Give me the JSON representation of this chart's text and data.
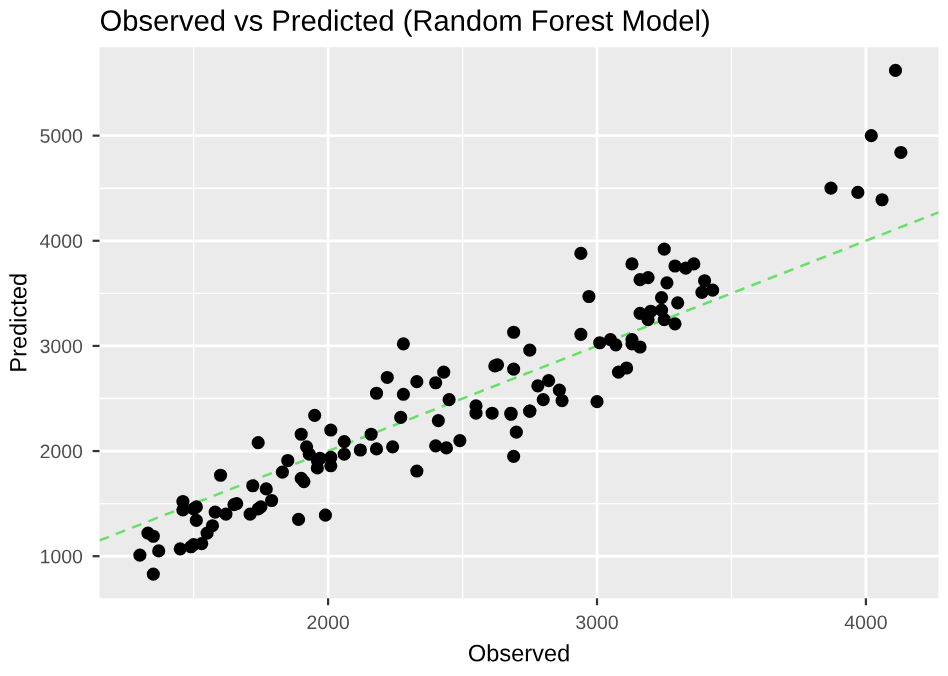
{
  "chart_data": {
    "type": "scatter",
    "title": "Observed vs Predicted (Random Forest Model)",
    "xlabel": "Observed",
    "ylabel": "Predicted",
    "xlim": [
      1150,
      4270
    ],
    "ylim": [
      600,
      5840
    ],
    "xticks": [
      2000,
      3000,
      4000
    ],
    "yticks": [
      1000,
      2000,
      3000,
      4000,
      5000
    ],
    "grid": true,
    "legend": false,
    "series": [
      {
        "color": "#000000",
        "marker": "circle",
        "x": [
          4110,
          4020,
          4130,
          3870,
          3970,
          4060,
          2940,
          3250,
          3130,
          3290,
          3330,
          3360,
          3160,
          3190,
          3260,
          3400,
          3390,
          3430,
          2970,
          3240,
          3300,
          3160,
          3200,
          3240,
          3190,
          3250,
          3290,
          2690,
          2940,
          3010,
          3050,
          3070,
          3130,
          3130,
          3160,
          2750,
          3080,
          3110,
          2780,
          2820,
          2860,
          2800,
          2870,
          3000,
          2750,
          2680,
          2700,
          2690,
          2280,
          2220,
          2180,
          2280,
          2330,
          2400,
          2430,
          2450,
          2550,
          2550,
          2610,
          2620,
          2630,
          2690,
          2680,
          2750,
          2270,
          2410,
          2400,
          2440,
          2490,
          2330,
          2160,
          2180,
          2240,
          2120,
          2060,
          2060,
          2010,
          2010,
          2010,
          1950,
          1900,
          1920,
          1930,
          1960,
          1960,
          1970,
          1850,
          1830,
          1900,
          1910,
          1990,
          1890,
          1740,
          1720,
          1770,
          1790,
          1750,
          1740,
          1710,
          1660,
          1650,
          1600,
          1620,
          1580,
          1570,
          1550,
          1530,
          1500,
          1490,
          1450,
          1460,
          1460,
          1500,
          1510,
          1510,
          1350,
          1330,
          1370,
          1300,
          1350
        ],
        "values": [
          5620,
          5000,
          4840,
          4500,
          4460,
          4390,
          3880,
          3920,
          3780,
          3760,
          3740,
          3780,
          3630,
          3650,
          3600,
          3620,
          3510,
          3530,
          3470,
          3460,
          3410,
          3310,
          3330,
          3340,
          3250,
          3250,
          3210,
          3130,
          3110,
          3030,
          3060,
          3010,
          3060,
          3020,
          2990,
          2960,
          2750,
          2790,
          2620,
          2670,
          2580,
          2490,
          2480,
          2470,
          2380,
          2350,
          2180,
          1950,
          3020,
          2700,
          2550,
          2540,
          2660,
          2650,
          2750,
          2490,
          2430,
          2360,
          2360,
          2810,
          2820,
          2780,
          2360,
          2380,
          2320,
          2290,
          2050,
          2030,
          2100,
          1810,
          2160,
          2020,
          2040,
          2010,
          2090,
          1970,
          2200,
          1940,
          1860,
          2340,
          2160,
          2040,
          1970,
          1910,
          1840,
          1930,
          1910,
          1800,
          1740,
          1710,
          1390,
          1350,
          2080,
          1670,
          1640,
          1530,
          1470,
          1450,
          1400,
          1500,
          1490,
          1770,
          1400,
          1420,
          1290,
          1220,
          1120,
          1110,
          1090,
          1070,
          1520,
          1440,
          1450,
          1340,
          1470,
          1190,
          1220,
          1050,
          1010,
          830
        ]
      },
      {
        "type": "line",
        "color": "#66e066",
        "line_style": "dashed",
        "marker": "none",
        "x": [
          1150,
          4270
        ],
        "values": [
          1150,
          4270
        ]
      }
    ]
  }
}
